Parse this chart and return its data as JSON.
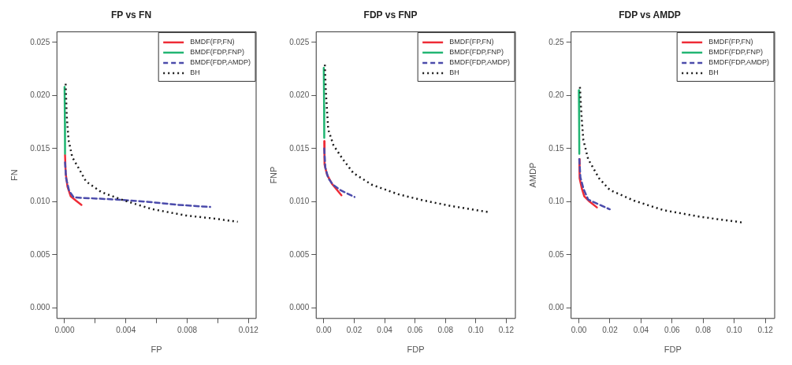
{
  "chart_data": [
    {
      "type": "line",
      "title": "FP vs FN",
      "xlabel": "FP",
      "ylabel": "FN",
      "legend": "top right",
      "grid": false,
      "marker": "none",
      "xlim": [
        -0.0005,
        0.0125
      ],
      "ylim": [
        -0.001,
        0.026
      ],
      "xticks": [
        {
          "value": 0,
          "label": "0.000"
        },
        {
          "value": 0.002,
          "label": null
        },
        {
          "value": 0.004,
          "label": "0.004"
        },
        {
          "value": 0.006,
          "label": null
        },
        {
          "value": 0.008,
          "label": "0.008"
        },
        {
          "value": 0.01,
          "label": null
        },
        {
          "value": 0.012,
          "label": "0.012"
        }
      ],
      "yticks": [
        {
          "value": 0,
          "label": "0.000"
        },
        {
          "value": 0.005,
          "label": "0.005"
        },
        {
          "value": 0.01,
          "label": "0.010"
        },
        {
          "value": 0.015,
          "label": "0.015"
        },
        {
          "value": 0.02,
          "label": "0.020"
        },
        {
          "value": 0.025,
          "label": "0.025"
        }
      ],
      "series": [
        {
          "name": "BMDF(FP,FN)",
          "color": "#ee2b36",
          "line_style": "solid",
          "x": [
            3e-05,
            7e-05,
            0.00019,
            0.0004,
            0.00074,
            0.0011
          ],
          "values": [
            0.0144,
            0.0127,
            0.0114,
            0.0105,
            0.0101,
            0.0097
          ]
        },
        {
          "name": "BMDF(FDP,FNP)",
          "color": "#22b573",
          "line_style": "solid",
          "x": [
            0,
            2e-05,
            3e-05
          ],
          "values": [
            0.0208,
            0.0175,
            0.0145
          ]
        },
        {
          "name": "BMDF(FDP,AMDP)",
          "color": "#4b4bab",
          "line_style": "dashed",
          "x": [
            3e-05,
            0.0001,
            0.0003,
            0.0006,
            0.0011,
            0.0034,
            0.0053,
            0.0074,
            0.0095
          ],
          "values": [
            0.0137,
            0.0122,
            0.011,
            0.0104,
            0.01036,
            0.0102,
            0.01,
            0.0097,
            0.0095
          ]
        },
        {
          "name": "BH",
          "color": "#1a1a1a",
          "line_style": "dotted",
          "x": [
            7e-05,
            0.00014,
            0.00026,
            0.0005,
            0.0009,
            0.0014,
            0.0024,
            0.0039,
            0.0057,
            0.0079,
            0.0098,
            0.0113
          ],
          "values": [
            0.0211,
            0.0181,
            0.0158,
            0.0142,
            0.0132,
            0.0119,
            0.0109,
            0.0101,
            0.0093,
            0.0087,
            0.0084,
            0.0081
          ]
        }
      ]
    },
    {
      "type": "line",
      "title": "FDP vs FNP",
      "xlabel": "FDP",
      "ylabel": "FNP",
      "legend": "top right",
      "grid": false,
      "marker": "none",
      "xlim": [
        -0.005,
        0.126
      ],
      "ylim": [
        -0.001,
        0.026
      ],
      "xticks": [
        {
          "value": 0,
          "label": "0.00"
        },
        {
          "value": 0.02,
          "label": "0.02"
        },
        {
          "value": 0.04,
          "label": "0.04"
        },
        {
          "value": 0.06,
          "label": "0.06"
        },
        {
          "value": 0.08,
          "label": "0.08"
        },
        {
          "value": 0.1,
          "label": "0.10"
        },
        {
          "value": 0.12,
          "label": "0.12"
        }
      ],
      "yticks": [
        {
          "value": 0,
          "label": "0.000"
        },
        {
          "value": 0.005,
          "label": "0.005"
        },
        {
          "value": 0.01,
          "label": "0.010"
        },
        {
          "value": 0.015,
          "label": "0.015"
        },
        {
          "value": 0.02,
          "label": "0.020"
        },
        {
          "value": 0.025,
          "label": "0.025"
        }
      ],
      "series": [
        {
          "name": "BMDF(FP,FN)",
          "color": "#ee2b36",
          "line_style": "solid",
          "x": [
            0.0003,
            0.0005,
            0.0021,
            0.0055,
            0.0116
          ],
          "values": [
            0.0157,
            0.0135,
            0.01255,
            0.01165,
            0.0106
          ]
        },
        {
          "name": "BMDF(FDP,FNP)",
          "color": "#22b573",
          "line_style": "solid",
          "x": [
            0,
            0.0002,
            0.0003
          ],
          "values": [
            0.0226,
            0.019,
            0.016
          ]
        },
        {
          "name": "BMDF(FDP,AMDP)",
          "color": "#4b4bab",
          "line_style": "dashed",
          "x": [
            0.0003,
            0.001,
            0.003,
            0.006,
            0.0107,
            0.0202
          ],
          "values": [
            0.015,
            0.0132,
            0.0122,
            0.0116,
            0.0111,
            0.01044
          ]
        },
        {
          "name": "BH",
          "color": "#1a1a1a",
          "line_style": "dotted",
          "x": [
            0.0007,
            0.0014,
            0.0029,
            0.0064,
            0.0125,
            0.0194,
            0.0315,
            0.0488,
            0.066,
            0.0833,
            0.109
          ],
          "values": [
            0.0229,
            0.0202,
            0.0168,
            0.0153,
            0.014,
            0.0127,
            0.0116,
            0.0107,
            0.0101,
            0.0096,
            0.009
          ]
        }
      ]
    },
    {
      "type": "line",
      "title": "FDP vs AMDP",
      "xlabel": "FDP",
      "ylabel": "AMDP",
      "legend": "top right",
      "grid": false,
      "marker": "none",
      "xlim": [
        -0.005,
        0.126
      ],
      "ylim": [
        -0.01,
        0.26
      ],
      "xticks": [
        {
          "value": 0,
          "label": "0.00"
        },
        {
          "value": 0.02,
          "label": "0.02"
        },
        {
          "value": 0.04,
          "label": "0.04"
        },
        {
          "value": 0.06,
          "label": "0.06"
        },
        {
          "value": 0.08,
          "label": "0.08"
        },
        {
          "value": 0.1,
          "label": "0.10"
        },
        {
          "value": 0.12,
          "label": "0.12"
        }
      ],
      "yticks": [
        {
          "value": 0,
          "label": "0.00"
        },
        {
          "value": 0.05,
          "label": "0.05"
        },
        {
          "value": 0.1,
          "label": "0.10"
        },
        {
          "value": 0.15,
          "label": "0.15"
        },
        {
          "value": 0.2,
          "label": "0.20"
        },
        {
          "value": 0.25,
          "label": "0.25"
        }
      ],
      "series": [
        {
          "name": "BMDF(FP,FN)",
          "color": "#ee2b36",
          "line_style": "solid",
          "x": [
            0.0003,
            0.0005,
            0.002,
            0.0035,
            0.0069,
            0.0116
          ],
          "values": [
            0.14,
            0.122,
            0.112,
            0.105,
            0.1,
            0.0946
          ]
        },
        {
          "name": "BMDF(FDP,FNP)",
          "color": "#22b573",
          "line_style": "solid",
          "x": [
            0,
            0.0002,
            0.0003
          ],
          "values": [
            0.205,
            0.17,
            0.145
          ]
        },
        {
          "name": "BMDF(FDP,AMDP)",
          "color": "#4b4bab",
          "line_style": "dashed",
          "x": [
            0.0003,
            0.001,
            0.003,
            0.006,
            0.0104,
            0.0199
          ],
          "values": [
            0.14,
            0.123,
            0.112,
            0.102,
            0.099,
            0.0928
          ]
        },
        {
          "name": "BH",
          "color": "#1a1a1a",
          "line_style": "dotted",
          "x": [
            0.0007,
            0.0017,
            0.0029,
            0.006,
            0.013,
            0.0199,
            0.0354,
            0.0544,
            0.0786,
            0.1053
          ],
          "values": [
            0.208,
            0.181,
            0.158,
            0.14,
            0.122,
            0.111,
            0.101,
            0.092,
            0.0856,
            0.0804
          ]
        }
      ]
    }
  ]
}
